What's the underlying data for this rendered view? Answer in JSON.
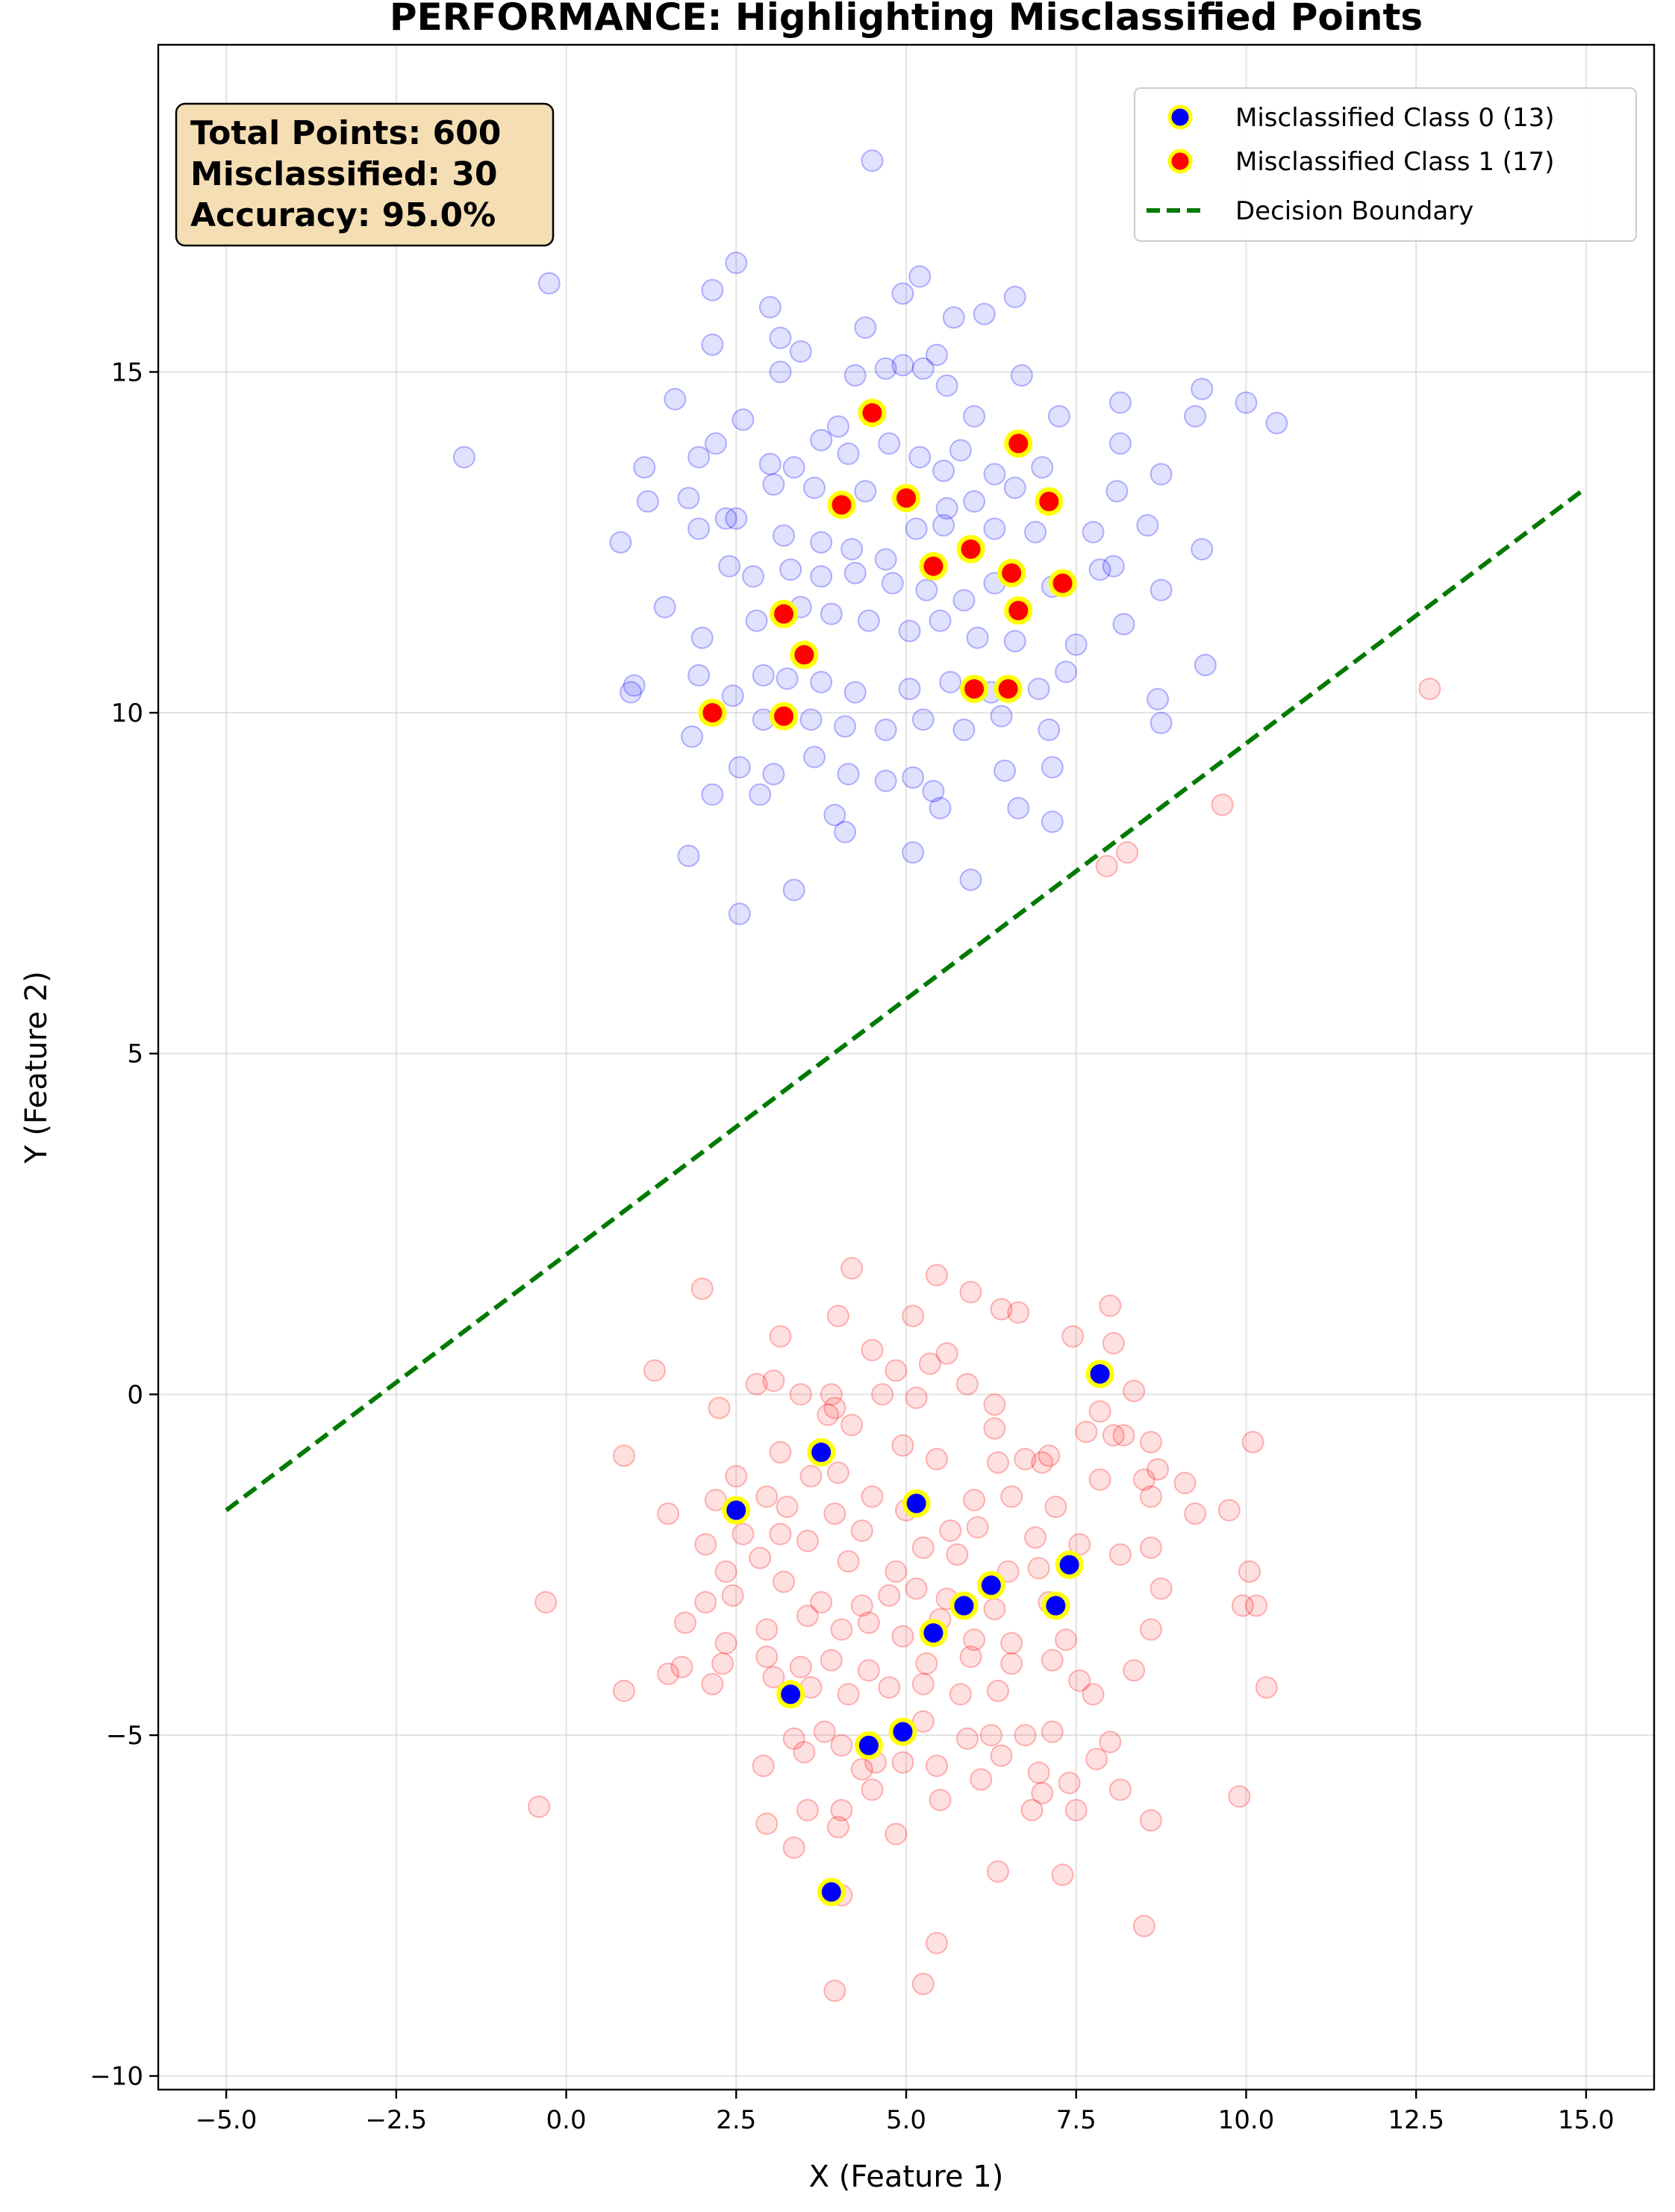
{
  "chart_data": {
    "type": "scatter",
    "title": "PERFORMANCE: Highlighting Misclassified Points",
    "xlabel": "X (Feature 1)",
    "ylabel": "Y (Feature 2)",
    "xlim": [
      -6.0,
      16.0
    ],
    "ylim": [
      -10.2,
      19.8
    ],
    "xticks": [
      -5.0,
      -2.5,
      0.0,
      2.5,
      5.0,
      7.5,
      10.0,
      12.5,
      15.0
    ],
    "xtick_labels": [
      "−5.0",
      "−2.5",
      "0.0",
      "2.5",
      "5.0",
      "7.5",
      "10.0",
      "12.5",
      "15.0"
    ],
    "yticks": [
      -10,
      -5,
      0,
      5,
      10,
      15
    ],
    "ytick_labels": [
      "−10",
      "−5",
      "0",
      "5",
      "10",
      "15"
    ],
    "grid": true,
    "legend_position": "top-right",
    "stats": {
      "total": "Total Points: 600",
      "misclassified": "Misclassified: 30",
      "accuracy": "Accuracy: 95.0%"
    },
    "legend": [
      {
        "label": "Misclassified Class 0 (13)",
        "color": "#0000ff"
      },
      {
        "label": "Misclassified Class 1 (17)",
        "color": "#ff0000"
      },
      {
        "label": "Decision Boundary",
        "color": "#007a00"
      }
    ],
    "decision_boundary": {
      "x": [
        -5.0,
        15.0
      ],
      "y": [
        -1.7,
        13.3
      ]
    },
    "series": [
      {
        "name": "Misclassified Class 1 (17)",
        "color": "#ff0000",
        "points": [
          [
            4.5,
            14.4
          ],
          [
            6.65,
            13.95
          ],
          [
            5.0,
            13.15
          ],
          [
            4.05,
            13.05
          ],
          [
            7.1,
            13.1
          ],
          [
            5.95,
            12.4
          ],
          [
            5.4,
            12.15
          ],
          [
            6.55,
            12.05
          ],
          [
            7.3,
            11.9
          ],
          [
            6.65,
            11.5
          ],
          [
            3.2,
            11.45
          ],
          [
            3.5,
            10.85
          ],
          [
            6.0,
            10.35
          ],
          [
            6.5,
            10.35
          ],
          [
            2.15,
            10.0
          ],
          [
            3.2,
            9.95
          ],
          [
            3.5,
            10.85
          ]
        ]
      },
      {
        "name": "Misclassified Class 0 (13)",
        "color": "#0000ff",
        "points": [
          [
            7.85,
            0.3
          ],
          [
            3.75,
            -0.85
          ],
          [
            2.5,
            -1.7
          ],
          [
            5.15,
            -1.6
          ],
          [
            7.4,
            -2.5
          ],
          [
            6.25,
            -2.8
          ],
          [
            5.85,
            -3.1
          ],
          [
            7.2,
            -3.1
          ],
          [
            5.4,
            -3.5
          ],
          [
            3.3,
            -4.4
          ],
          [
            4.95,
            -4.95
          ],
          [
            4.45,
            -5.15
          ],
          [
            3.9,
            -7.3
          ]
        ]
      }
    ],
    "background_class0_color": "#0000ff",
    "background_class1_color": "#ff0000",
    "background_class0": [
      [
        4.5,
        18.1
      ],
      [
        -0.25,
        16.3
      ],
      [
        2.5,
        16.6
      ],
      [
        2.15,
        16.2
      ],
      [
        3.0,
        15.95
      ],
      [
        4.95,
        16.15
      ],
      [
        5.2,
        16.4
      ],
      [
        6.6,
        16.1
      ],
      [
        3.15,
        15.5
      ],
      [
        3.45,
        15.3
      ],
      [
        2.15,
        15.4
      ],
      [
        4.4,
        15.65
      ],
      [
        5.7,
        15.8
      ],
      [
        6.15,
        15.85
      ],
      [
        3.15,
        15.0
      ],
      [
        4.25,
        14.95
      ],
      [
        4.7,
        15.05
      ],
      [
        4.95,
        15.1
      ],
      [
        5.45,
        15.25
      ],
      [
        5.25,
        15.05
      ],
      [
        6.7,
        14.95
      ],
      [
        1.6,
        14.6
      ],
      [
        2.6,
        14.3
      ],
      [
        4.0,
        14.2
      ],
      [
        5.6,
        14.8
      ],
      [
        6.0,
        14.35
      ],
      [
        7.25,
        14.35
      ],
      [
        8.15,
        14.55
      ],
      [
        9.35,
        14.75
      ],
      [
        10.0,
        14.55
      ],
      [
        10.45,
        14.25
      ],
      [
        9.25,
        14.35
      ],
      [
        -1.5,
        13.75
      ],
      [
        1.15,
        13.6
      ],
      [
        1.95,
        13.75
      ],
      [
        2.2,
        13.95
      ],
      [
        3.0,
        13.65
      ],
      [
        3.35,
        13.6
      ],
      [
        3.75,
        14.0
      ],
      [
        4.15,
        13.8
      ],
      [
        4.75,
        13.95
      ],
      [
        5.2,
        13.75
      ],
      [
        5.55,
        13.55
      ],
      [
        5.8,
        13.85
      ],
      [
        6.3,
        13.5
      ],
      [
        7.0,
        13.6
      ],
      [
        8.15,
        13.95
      ],
      [
        8.75,
        13.5
      ],
      [
        1.2,
        13.1
      ],
      [
        1.8,
        13.15
      ],
      [
        2.5,
        12.85
      ],
      [
        3.05,
        13.35
      ],
      [
        3.65,
        13.3
      ],
      [
        4.4,
        13.25
      ],
      [
        5.6,
        13.0
      ],
      [
        6.0,
        13.1
      ],
      [
        6.6,
        13.3
      ],
      [
        8.1,
        13.25
      ],
      [
        0.8,
        12.5
      ],
      [
        1.95,
        12.7
      ],
      [
        2.35,
        12.85
      ],
      [
        3.2,
        12.6
      ],
      [
        3.75,
        12.5
      ],
      [
        4.2,
        12.4
      ],
      [
        4.7,
        12.25
      ],
      [
        5.15,
        12.7
      ],
      [
        5.55,
        12.75
      ],
      [
        6.3,
        12.7
      ],
      [
        6.9,
        12.65
      ],
      [
        7.75,
        12.65
      ],
      [
        8.55,
        12.75
      ],
      [
        9.35,
        12.4
      ],
      [
        2.4,
        12.15
      ],
      [
        2.75,
        12.0
      ],
      [
        3.3,
        12.1
      ],
      [
        3.75,
        12.0
      ],
      [
        4.25,
        12.05
      ],
      [
        4.8,
        11.9
      ],
      [
        5.3,
        11.8
      ],
      [
        5.85,
        11.65
      ],
      [
        6.3,
        11.9
      ],
      [
        7.15,
        11.85
      ],
      [
        7.85,
        12.1
      ],
      [
        8.05,
        12.15
      ],
      [
        1.45,
        11.55
      ],
      [
        2.0,
        11.1
      ],
      [
        2.8,
        11.35
      ],
      [
        3.45,
        11.55
      ],
      [
        3.9,
        11.45
      ],
      [
        4.45,
        11.35
      ],
      [
        5.05,
        11.2
      ],
      [
        5.5,
        11.35
      ],
      [
        6.05,
        11.1
      ],
      [
        6.6,
        11.05
      ],
      [
        7.5,
        11.0
      ],
      [
        8.2,
        11.3
      ],
      [
        8.75,
        11.8
      ],
      [
        0.95,
        10.3
      ],
      [
        1.0,
        10.4
      ],
      [
        1.95,
        10.55
      ],
      [
        2.45,
        10.25
      ],
      [
        2.9,
        10.55
      ],
      [
        3.25,
        10.5
      ],
      [
        3.75,
        10.45
      ],
      [
        4.25,
        10.3
      ],
      [
        5.05,
        10.35
      ],
      [
        5.65,
        10.45
      ],
      [
        6.25,
        10.3
      ],
      [
        6.95,
        10.35
      ],
      [
        7.35,
        10.6
      ],
      [
        8.7,
        10.2
      ],
      [
        9.4,
        10.7
      ],
      [
        1.85,
        9.65
      ],
      [
        2.9,
        9.9
      ],
      [
        3.6,
        9.9
      ],
      [
        4.1,
        9.8
      ],
      [
        4.7,
        9.75
      ],
      [
        5.25,
        9.9
      ],
      [
        5.85,
        9.75
      ],
      [
        6.4,
        9.95
      ],
      [
        7.1,
        9.75
      ],
      [
        8.75,
        9.85
      ],
      [
        2.55,
        9.2
      ],
      [
        3.05,
        9.1
      ],
      [
        3.65,
        9.35
      ],
      [
        4.15,
        9.1
      ],
      [
        4.7,
        9.0
      ],
      [
        5.1,
        9.05
      ],
      [
        5.4,
        8.85
      ],
      [
        6.45,
        9.15
      ],
      [
        7.15,
        9.2
      ],
      [
        2.15,
        8.8
      ],
      [
        2.85,
        8.8
      ],
      [
        3.95,
        8.5
      ],
      [
        4.1,
        8.25
      ],
      [
        5.1,
        7.95
      ],
      [
        5.5,
        8.6
      ],
      [
        6.65,
        8.6
      ],
      [
        7.15,
        8.4
      ],
      [
        1.8,
        7.9
      ],
      [
        3.35,
        7.4
      ],
      [
        5.95,
        7.55
      ],
      [
        2.55,
        7.05
      ]
    ],
    "background_class1": [
      [
        12.7,
        10.35
      ],
      [
        9.65,
        8.65
      ],
      [
        7.95,
        7.75
      ],
      [
        8.25,
        7.95
      ],
      [
        4.2,
        1.85
      ],
      [
        5.45,
        1.75
      ],
      [
        5.95,
        1.5
      ],
      [
        2.0,
        1.55
      ],
      [
        6.65,
        1.2
      ],
      [
        8.0,
        1.3
      ],
      [
        4.0,
        1.15
      ],
      [
        5.1,
        1.15
      ],
      [
        6.4,
        1.25
      ],
      [
        3.15,
        0.85
      ],
      [
        7.45,
        0.85
      ],
      [
        8.05,
        0.75
      ],
      [
        1.3,
        0.35
      ],
      [
        4.5,
        0.65
      ],
      [
        5.6,
        0.6
      ],
      [
        3.45,
        0.0
      ],
      [
        3.9,
        0.0
      ],
      [
        5.9,
        0.15
      ],
      [
        2.8,
        0.15
      ],
      [
        3.05,
        0.2
      ],
      [
        4.85,
        0.35
      ],
      [
        5.35,
        0.45
      ],
      [
        8.35,
        0.05
      ],
      [
        3.95,
        -0.2
      ],
      [
        4.65,
        0.0
      ],
      [
        5.15,
        -0.05
      ],
      [
        6.3,
        -0.15
      ],
      [
        7.85,
        -0.25
      ],
      [
        8.05,
        -0.6
      ],
      [
        8.2,
        -0.6
      ],
      [
        2.25,
        -0.2
      ],
      [
        3.85,
        -0.3
      ],
      [
        4.2,
        -0.45
      ],
      [
        6.3,
        -0.5
      ],
      [
        7.65,
        -0.55
      ],
      [
        8.6,
        -0.7
      ],
      [
        10.1,
        -0.7
      ],
      [
        0.85,
        -0.9
      ],
      [
        3.15,
        -0.85
      ],
      [
        4.95,
        -0.75
      ],
      [
        5.45,
        -0.95
      ],
      [
        7.1,
        -0.9
      ],
      [
        6.75,
        -0.95
      ],
      [
        8.7,
        -1.1
      ],
      [
        9.1,
        -1.3
      ],
      [
        2.5,
        -1.2
      ],
      [
        3.6,
        -1.2
      ],
      [
        4.0,
        -1.15
      ],
      [
        6.35,
        -1.0
      ],
      [
        7.0,
        -1.0
      ],
      [
        7.85,
        -1.25
      ],
      [
        8.5,
        -1.25
      ],
      [
        2.2,
        -1.55
      ],
      [
        2.95,
        -1.5
      ],
      [
        3.25,
        -1.65
      ],
      [
        4.5,
        -1.5
      ],
      [
        5.0,
        -1.7
      ],
      [
        6.0,
        -1.55
      ],
      [
        6.55,
        -1.5
      ],
      [
        7.2,
        -1.65
      ],
      [
        8.6,
        -1.5
      ],
      [
        1.5,
        -1.75
      ],
      [
        2.05,
        -2.2
      ],
      [
        2.6,
        -2.05
      ],
      [
        3.15,
        -2.05
      ],
      [
        3.95,
        -1.75
      ],
      [
        4.35,
        -2.0
      ],
      [
        5.65,
        -2.0
      ],
      [
        6.05,
        -1.95
      ],
      [
        6.9,
        -2.1
      ],
      [
        7.55,
        -2.2
      ],
      [
        8.15,
        -2.35
      ],
      [
        9.25,
        -1.75
      ],
      [
        9.75,
        -1.7
      ],
      [
        2.35,
        -2.6
      ],
      [
        2.85,
        -2.4
      ],
      [
        3.55,
        -2.15
      ],
      [
        4.15,
        -2.45
      ],
      [
        4.85,
        -2.6
      ],
      [
        5.25,
        -2.25
      ],
      [
        5.75,
        -2.35
      ],
      [
        6.5,
        -2.6
      ],
      [
        6.95,
        -2.55
      ],
      [
        8.6,
        -2.25
      ],
      [
        8.75,
        -2.85
      ],
      [
        10.05,
        -2.6
      ],
      [
        2.05,
        -3.05
      ],
      [
        2.45,
        -2.95
      ],
      [
        3.2,
        -2.75
      ],
      [
        3.75,
        -3.05
      ],
      [
        4.35,
        -3.1
      ],
      [
        4.75,
        -2.95
      ],
      [
        5.15,
        -2.85
      ],
      [
        5.6,
        -3.0
      ],
      [
        6.3,
        -3.15
      ],
      [
        7.1,
        -3.05
      ],
      [
        9.95,
        -3.1
      ],
      [
        10.15,
        -3.1
      ],
      [
        -0.3,
        -3.05
      ],
      [
        1.75,
        -3.35
      ],
      [
        2.35,
        -3.65
      ],
      [
        2.95,
        -3.45
      ],
      [
        3.55,
        -3.25
      ],
      [
        4.05,
        -3.45
      ],
      [
        4.45,
        -3.35
      ],
      [
        4.95,
        -3.55
      ],
      [
        5.5,
        -3.3
      ],
      [
        6.0,
        -3.6
      ],
      [
        6.55,
        -3.65
      ],
      [
        7.35,
        -3.6
      ],
      [
        8.6,
        -3.45
      ],
      [
        1.7,
        -4.0
      ],
      [
        2.3,
        -3.95
      ],
      [
        2.95,
        -3.85
      ],
      [
        3.45,
        -4.0
      ],
      [
        3.9,
        -3.9
      ],
      [
        4.45,
        -4.05
      ],
      [
        5.3,
        -3.95
      ],
      [
        5.95,
        -3.85
      ],
      [
        6.55,
        -3.95
      ],
      [
        7.15,
        -3.9
      ],
      [
        8.35,
        -4.05
      ],
      [
        0.85,
        -4.35
      ],
      [
        1.5,
        -4.1
      ],
      [
        2.15,
        -4.25
      ],
      [
        3.05,
        -4.15
      ],
      [
        3.6,
        -4.3
      ],
      [
        4.15,
        -4.4
      ],
      [
        4.75,
        -4.3
      ],
      [
        5.25,
        -4.25
      ],
      [
        5.8,
        -4.4
      ],
      [
        6.35,
        -4.35
      ],
      [
        7.55,
        -4.2
      ],
      [
        7.75,
        -4.4
      ],
      [
        10.3,
        -4.3
      ],
      [
        3.35,
        -5.05
      ],
      [
        3.8,
        -4.95
      ],
      [
        4.35,
        -5.5
      ],
      [
        4.55,
        -5.4
      ],
      [
        5.45,
        -5.45
      ],
      [
        5.9,
        -5.05
      ],
      [
        6.25,
        -5.0
      ],
      [
        6.75,
        -5.0
      ],
      [
        7.15,
        -4.95
      ],
      [
        8.0,
        -5.1
      ],
      [
        -0.4,
        -6.05
      ],
      [
        2.9,
        -5.45
      ],
      [
        3.5,
        -5.25
      ],
      [
        4.05,
        -5.15
      ],
      [
        4.95,
        -5.4
      ],
      [
        5.25,
        -4.8
      ],
      [
        6.4,
        -5.3
      ],
      [
        6.95,
        -5.55
      ],
      [
        7.4,
        -5.7
      ],
      [
        7.8,
        -5.35
      ],
      [
        8.15,
        -5.8
      ],
      [
        9.9,
        -5.9
      ],
      [
        2.95,
        -6.3
      ],
      [
        3.55,
        -6.1
      ],
      [
        4.05,
        -6.1
      ],
      [
        4.5,
        -5.8
      ],
      [
        4.85,
        -6.45
      ],
      [
        5.5,
        -5.95
      ],
      [
        6.1,
        -5.65
      ],
      [
        6.85,
        -6.1
      ],
      [
        7.0,
        -5.85
      ],
      [
        7.5,
        -6.1
      ],
      [
        8.6,
        -6.25
      ],
      [
        3.35,
        -6.65
      ],
      [
        4.0,
        -6.35
      ],
      [
        6.35,
        -7.0
      ],
      [
        7.3,
        -7.05
      ],
      [
        4.05,
        -7.35
      ],
      [
        5.45,
        -8.05
      ],
      [
        8.5,
        -7.8
      ],
      [
        5.25,
        -8.65
      ],
      [
        3.95,
        -8.75
      ]
    ]
  }
}
